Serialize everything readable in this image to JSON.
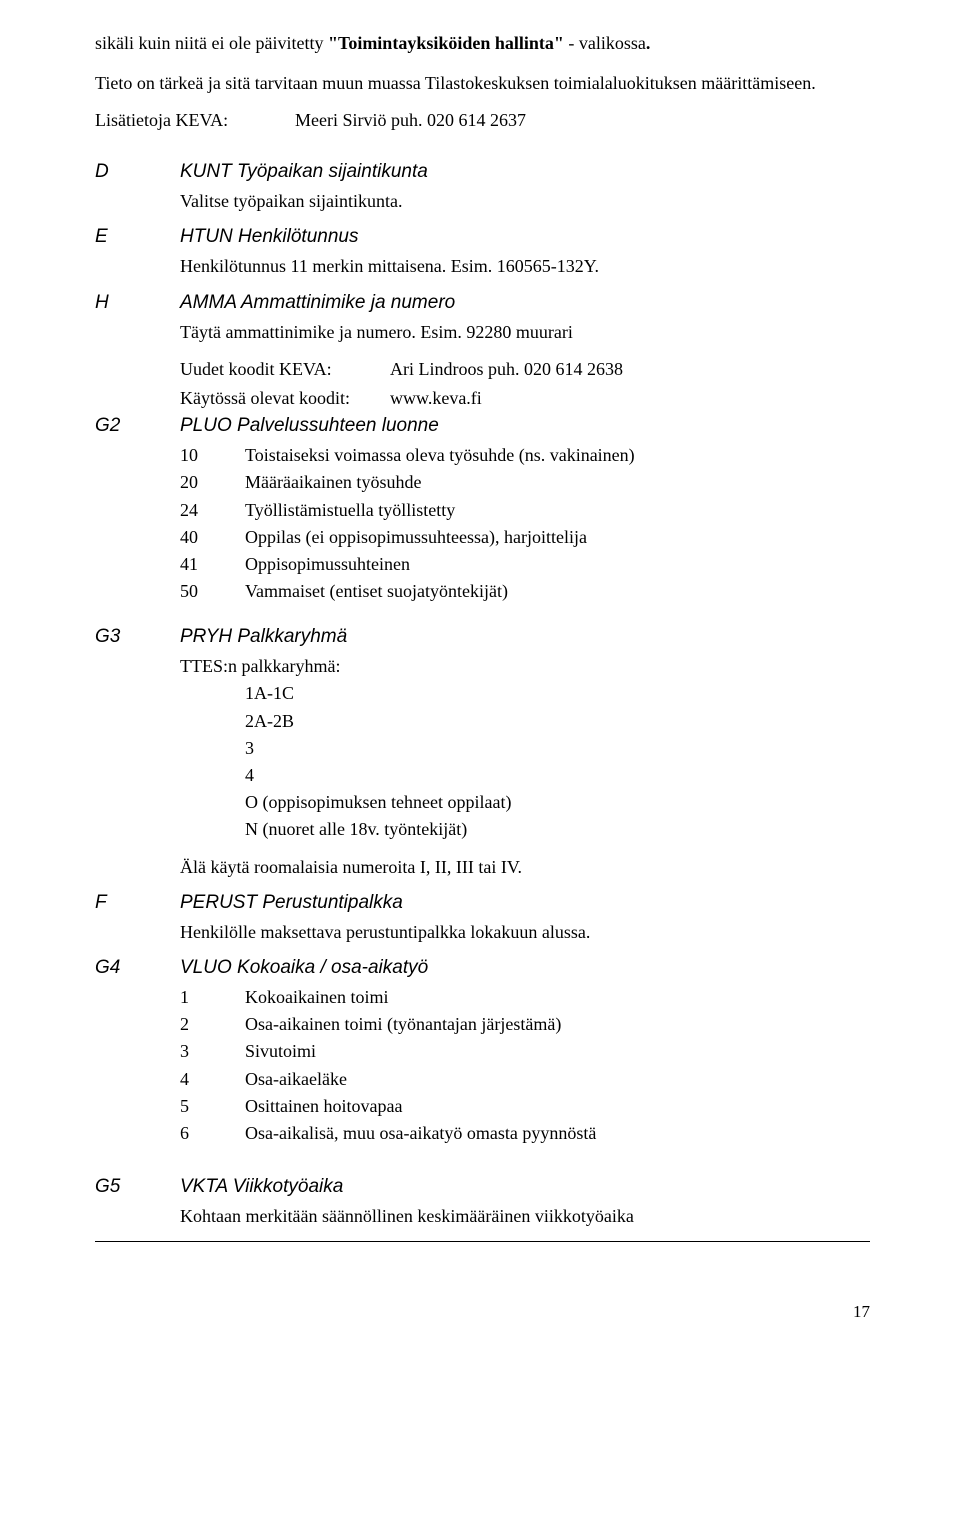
{
  "intro": {
    "p1_a": "sikäli kuin niitä ei ole päivitetty ",
    "p1_b": "\"Toimintayksiköiden hallinta\"",
    "p1_c": " - valikossa",
    "p1_dot": ".",
    "p2": "Tieto on tärkeä ja sitä tarvitaan muun muassa Tilastokeskuksen toimialaluokituksen määrittämiseen.",
    "p3_label": "Lisätietoja KEVA:",
    "p3_value": "Meeri Sirviö puh. 020 614 2637"
  },
  "D": {
    "letter": "D",
    "title": "KUNT Työpaikan sijaintikunta",
    "body": "Valitse työpaikan sijaintikunta."
  },
  "E": {
    "letter": "E",
    "title": "HTUN Henkilötunnus",
    "body": "Henkilötunnus 11 merkin mittaisena. Esim. 160565-132Y."
  },
  "H": {
    "letter": "H",
    "title": "AMMA Ammattinimike ja numero",
    "body": "Täytä ammattinimike ja numero. Esim. 92280 muurari",
    "rows": [
      {
        "k": "Uudet koodit KEVA:",
        "v": "Ari Lindroos puh. 020 614 2638"
      },
      {
        "k": "Käytössä olevat koodit:",
        "v": "www.keva.fi"
      }
    ]
  },
  "G2": {
    "letter": "G2",
    "title": "PLUO Palvelussuhteen luonne",
    "items": [
      {
        "num": "10",
        "txt": "Toistaiseksi voimassa oleva työsuhde (ns. vakinainen)"
      },
      {
        "num": "20",
        "txt": "Määräaikainen työsuhde"
      },
      {
        "num": "24",
        "txt": "Työllistämistuella työllistetty"
      },
      {
        "num": "40",
        "txt": "Oppilas (ei oppisopimussuhteessa), harjoittelija"
      },
      {
        "num": "41",
        "txt": "Oppisopimussuhteinen"
      },
      {
        "num": "50",
        "txt": "Vammaiset (entiset suojatyöntekijät)"
      }
    ]
  },
  "G3": {
    "letter": "G3",
    "title": "PRYH Palkkaryhmä",
    "lead": "TTES:n palkkaryhmä:",
    "lines": [
      "1A-1C",
      "2A-2B",
      "3",
      "4",
      "O (oppisopimuksen tehneet oppilaat)",
      "N (nuoret alle 18v. työntekijät)"
    ],
    "tail": "Älä käytä roomalaisia numeroita I, II, III tai IV."
  },
  "F": {
    "letter": "F",
    "title": "PERUST Perustuntipalkka",
    "body": "Henkilölle maksettava perustuntipalkka lokakuun alussa."
  },
  "G4": {
    "letter": "G4",
    "title": "VLUO Kokoaika / osa-aikatyö",
    "items": [
      {
        "num": "1",
        "txt": "Kokoaikainen toimi"
      },
      {
        "num": "2",
        "txt": "Osa-aikainen toimi (työnantajan järjestämä)"
      },
      {
        "num": "3",
        "txt": "Sivutoimi"
      },
      {
        "num": "4",
        "txt": "Osa-aikaeläke"
      },
      {
        "num": "5",
        "txt": "Osittainen hoitovapaa"
      },
      {
        "num": "6",
        "txt": "Osa-aikalisä, muu osa-aikatyö omasta pyynnöstä"
      }
    ]
  },
  "G5": {
    "letter": "G5",
    "title": "VKTA Viikkotyöaika",
    "body": "Kohtaan merkitään säännöllinen keskimääräinen viikkotyöaika"
  },
  "pageNumber": "17"
}
